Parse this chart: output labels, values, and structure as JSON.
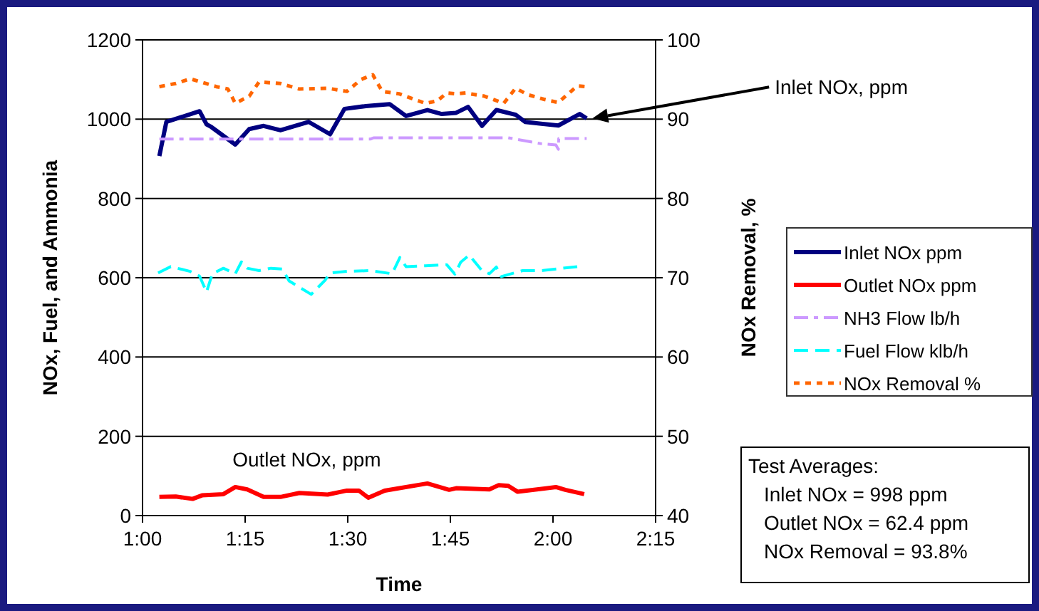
{
  "chart_data": {
    "type": "line",
    "xlabel": "Time",
    "ylabel": "NOx, Fuel, and Ammonia",
    "y2label": "NOx Removal, %",
    "xlim": [
      1,
      2.25
    ],
    "xticks": [
      {
        "value": 1,
        "label": "1:00"
      },
      {
        "value": 1.25,
        "label": "1:15"
      },
      {
        "value": 1.5,
        "label": "1:30"
      },
      {
        "value": 1.75,
        "label": "1:45"
      },
      {
        "value": 2,
        "label": "2:00"
      },
      {
        "value": 2.25,
        "label": "2:15"
      }
    ],
    "ylim": [
      0,
      1200
    ],
    "yticks": [
      0,
      200,
      400,
      600,
      800,
      1000,
      1200
    ],
    "y2lim": [
      40,
      100
    ],
    "y2ticks": [
      40,
      50,
      60,
      70,
      80,
      90,
      100
    ],
    "grid": "y",
    "legend": "right",
    "marker": "none",
    "series": [
      {
        "name": "Inlet NOx ppm",
        "color": "#000080",
        "line_style": "solid",
        "x": [
          1.041,
          1.058,
          1.139,
          1.156,
          1.168,
          1.226,
          1.26,
          1.295,
          1.336,
          1.405,
          1.457,
          1.492,
          1.544,
          1.602,
          1.642,
          1.694,
          1.729,
          1.764,
          1.793,
          1.827,
          1.862,
          1.909,
          1.932,
          2.013,
          2.065,
          2.082
        ],
        "values": [
          907,
          993,
          1020,
          987,
          980,
          936,
          975,
          983,
          972,
          993,
          962,
          1026,
          1033,
          1038,
          1008,
          1023,
          1013,
          1016,
          1031,
          983,
          1023,
          1011,
          993,
          984,
          1013,
          1002
        ]
      },
      {
        "name": "Outlet NOx ppm",
        "color": "#ff0000",
        "line_style": "solid",
        "x": [
          1.041,
          1.081,
          1.122,
          1.145,
          1.197,
          1.226,
          1.255,
          1.295,
          1.336,
          1.382,
          1.451,
          1.498,
          1.527,
          1.55,
          1.59,
          1.694,
          1.747,
          1.764,
          1.845,
          1.868,
          1.891,
          1.914,
          2.007,
          2.03,
          2.076
        ],
        "values": [
          47,
          48,
          42,
          51,
          54,
          72,
          66,
          47,
          47,
          57,
          53,
          63,
          63,
          45,
          63,
          81,
          65,
          69,
          66,
          77,
          75,
          60,
          72,
          65,
          54
        ]
      },
      {
        "name": "NH3 Flow lb/h",
        "color": "#cc99ff",
        "line_style": "dashdot",
        "x": [
          1.041,
          1.556,
          1.563,
          1.891,
          1.972,
          2.007,
          2.013,
          2.014,
          2.082
        ],
        "values": [
          950,
          950,
          953,
          953,
          938,
          935,
          924,
          951,
          951
        ]
      },
      {
        "name": "Fuel Flow klb/h",
        "color": "#00ffff",
        "line_style": "dashed",
        "x": [
          1.038,
          1.069,
          1.116,
          1.139,
          1.156,
          1.17,
          1.197,
          1.226,
          1.241,
          1.255,
          1.284,
          1.313,
          1.341,
          1.357,
          1.411,
          1.445,
          1.457,
          1.498,
          1.556,
          1.608,
          1.627,
          1.642,
          1.689,
          1.741,
          1.761,
          1.775,
          1.796,
          1.827,
          1.845,
          1.862,
          1.874,
          1.926,
          1.972,
          2.059
        ],
        "values": [
          612,
          628,
          616,
          604,
          564,
          610,
          624,
          610,
          640,
          624,
          618,
          624,
          622,
          592,
          558,
          594,
          612,
          616,
          618,
          610,
          651,
          628,
          630,
          633,
          609,
          639,
          657,
          618,
          610,
          627,
          603,
          618,
          618,
          628
        ]
      },
      {
        "name": "NOx Removal %",
        "color": "#ff6600",
        "line_style": "dotted",
        "axis": "y2",
        "x": [
          1.041,
          1.081,
          1.116,
          1.18,
          1.208,
          1.226,
          1.26,
          1.284,
          1.336,
          1.382,
          1.451,
          1.498,
          1.532,
          1.561,
          1.584,
          1.625,
          1.689,
          1.718,
          1.741,
          1.764,
          1.787,
          1.833,
          1.88,
          1.909,
          1.938,
          1.978,
          2.013,
          2.059,
          2.082
        ],
        "values": [
          94.1,
          94.5,
          95.1,
          94.1,
          93.8,
          92.0,
          92.9,
          94.7,
          94.5,
          93.8,
          93.9,
          93.5,
          95.0,
          95.6,
          93.5,
          93.2,
          92.0,
          92.3,
          93.3,
          93.2,
          93.3,
          92.9,
          92.0,
          93.9,
          93.1,
          92.5,
          92.1,
          94.2,
          94.1
        ]
      }
    ],
    "annotations": [
      "Inlet NOx, ppm",
      {
        "text": "Outlet NOx, ppm",
        "x": 1.4,
        "y": 63
      },
      "Test Averages:",
      "Inlet NOx = 998 ppm",
      "Outlet NOx = 62.4 ppm",
      "NOx Removal = 93.8%"
    ]
  }
}
